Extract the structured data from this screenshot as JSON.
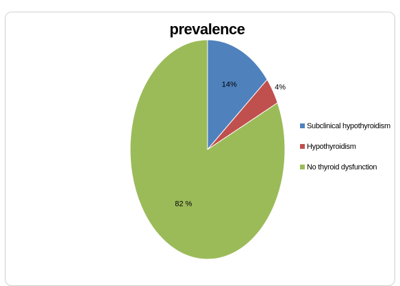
{
  "chart_data": {
    "type": "pie",
    "title": "prevalence",
    "slices": [
      {
        "name": "Subclinical hypothyroidism",
        "value": 14,
        "label": "14%",
        "color": "#4f81bd"
      },
      {
        "name": "Hypothyroidism",
        "value": 4,
        "label": "4%",
        "color": "#c0504d"
      },
      {
        "name": "No thyroid dysfunction",
        "value": 82,
        "label": "82 %",
        "color": "#9bbb59"
      }
    ],
    "start": "12 o'clock, clockwise",
    "legend": "right"
  }
}
